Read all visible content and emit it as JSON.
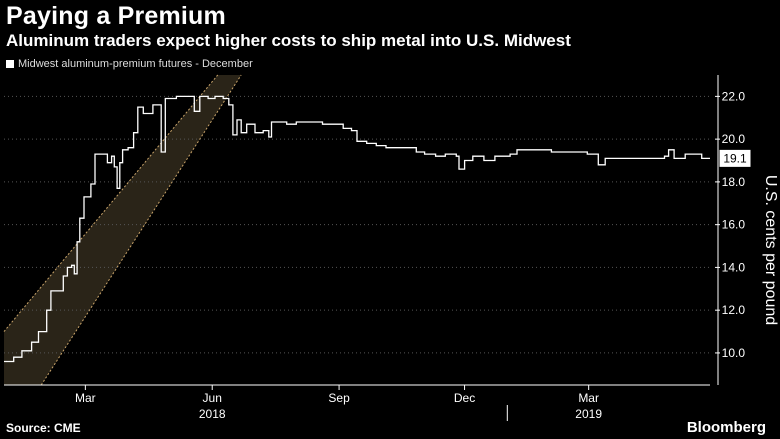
{
  "header": {
    "title": "Paying a Premium",
    "subtitle": "Aluminum traders expect higher costs to ship metal into U.S. Midwest"
  },
  "legend": {
    "label": "Midwest aluminum-premium futures - December"
  },
  "footer": {
    "source": "Source: CME",
    "brand": "Bloomberg"
  },
  "colors": {
    "background": "#000000",
    "line": "#ffffff",
    "band_fill": "#2a2418",
    "band_edge": "#c9a46a"
  },
  "chart_data": {
    "type": "line",
    "title": "Paying a Premium",
    "subtitle": "Aluminum traders expect higher costs to ship metal into U.S. Midwest",
    "ylabel": "U.S. cents per pound",
    "ylim": [
      8.5,
      23.0
    ],
    "yticks": [
      "10.0",
      "12.0",
      "14.0",
      "16.0",
      "18.0",
      "20.0",
      "22.0"
    ],
    "ytick_values": [
      10,
      12,
      14,
      16,
      18,
      20,
      22
    ],
    "xlim": [
      "2018-01-01",
      "2019-05-28"
    ],
    "xticks": [
      {
        "label": "Mar",
        "date": "2018-03-01"
      },
      {
        "label": "Jun",
        "date": "2018-06-01"
      },
      {
        "label": "Sep",
        "date": "2018-09-01"
      },
      {
        "label": "Dec",
        "date": "2018-12-01"
      },
      {
        "label": "Mar",
        "date": "2019-03-01"
      }
    ],
    "year_labels": [
      {
        "label": "2018",
        "date": "2018-06-01"
      },
      {
        "label": "2019",
        "date": "2019-03-01"
      }
    ],
    "last_value_label": "19.1",
    "annotation": "shaded band highlighting the rally",
    "series": [
      {
        "points": [
          [
            "2018-01-01",
            9.6
          ],
          [
            "2018-01-08",
            9.8
          ],
          [
            "2018-01-14",
            10.1
          ],
          [
            "2018-01-21",
            10.5
          ],
          [
            "2018-01-26",
            11.0
          ],
          [
            "2018-02-01",
            12.0
          ],
          [
            "2018-02-04",
            12.9
          ],
          [
            "2018-02-10",
            12.9
          ],
          [
            "2018-02-13",
            13.6
          ],
          [
            "2018-02-16",
            14.0
          ],
          [
            "2018-02-19",
            14.1
          ],
          [
            "2018-02-21",
            13.7
          ],
          [
            "2018-02-23",
            15.2
          ],
          [
            "2018-02-25",
            16.3
          ],
          [
            "2018-02-28",
            17.3
          ],
          [
            "2018-03-05",
            17.9
          ],
          [
            "2018-03-08",
            19.3
          ],
          [
            "2018-03-14",
            19.3
          ],
          [
            "2018-03-17",
            18.9
          ],
          [
            "2018-03-20",
            19.2
          ],
          [
            "2018-03-22",
            18.7
          ],
          [
            "2018-03-24",
            17.7
          ],
          [
            "2018-03-26",
            18.9
          ],
          [
            "2018-03-28",
            19.5
          ],
          [
            "2018-04-01",
            19.6
          ],
          [
            "2018-04-05",
            20.3
          ],
          [
            "2018-04-08",
            21.5
          ],
          [
            "2018-04-12",
            21.2
          ],
          [
            "2018-04-16",
            21.2
          ],
          [
            "2018-04-19",
            21.6
          ],
          [
            "2018-04-22",
            21.6
          ],
          [
            "2018-04-25",
            19.4
          ],
          [
            "2018-04-28",
            21.9
          ],
          [
            "2018-05-06",
            22.0
          ],
          [
            "2018-05-13",
            22.0
          ],
          [
            "2018-05-19",
            21.3
          ],
          [
            "2018-05-23",
            22.0
          ],
          [
            "2018-05-29",
            21.9
          ],
          [
            "2018-06-03",
            22.0
          ],
          [
            "2018-06-09",
            21.9
          ],
          [
            "2018-06-13",
            21.6
          ],
          [
            "2018-06-16",
            20.2
          ],
          [
            "2018-06-19",
            20.9
          ],
          [
            "2018-06-22",
            20.3
          ],
          [
            "2018-06-26",
            20.7
          ],
          [
            "2018-07-02",
            20.3
          ],
          [
            "2018-07-08",
            20.4
          ],
          [
            "2018-07-12",
            20.1
          ],
          [
            "2018-07-14",
            20.8
          ],
          [
            "2018-07-20",
            20.8
          ],
          [
            "2018-07-25",
            20.7
          ],
          [
            "2018-08-01",
            20.8
          ],
          [
            "2018-08-20",
            20.7
          ],
          [
            "2018-08-29",
            20.7
          ],
          [
            "2018-09-04",
            20.5
          ],
          [
            "2018-09-10",
            20.4
          ],
          [
            "2018-09-14",
            19.9
          ],
          [
            "2018-09-21",
            19.8
          ],
          [
            "2018-09-28",
            19.7
          ],
          [
            "2018-10-05",
            19.6
          ],
          [
            "2018-10-14",
            19.6
          ],
          [
            "2018-10-22",
            19.6
          ],
          [
            "2018-10-27",
            19.4
          ],
          [
            "2018-11-02",
            19.3
          ],
          [
            "2018-11-10",
            19.2
          ],
          [
            "2018-11-17",
            19.3
          ],
          [
            "2018-11-25",
            19.2
          ],
          [
            "2018-11-27",
            18.6
          ],
          [
            "2018-12-01",
            19.0
          ],
          [
            "2018-12-07",
            19.2
          ],
          [
            "2018-12-15",
            19.0
          ],
          [
            "2018-12-23",
            19.2
          ],
          [
            "2019-01-03",
            19.3
          ],
          [
            "2019-01-08",
            19.5
          ],
          [
            "2019-01-20",
            19.5
          ],
          [
            "2019-02-02",
            19.4
          ],
          [
            "2019-02-14",
            19.4
          ],
          [
            "2019-02-28",
            19.3
          ],
          [
            "2019-03-05",
            19.3
          ],
          [
            "2019-03-08",
            18.8
          ],
          [
            "2019-03-13",
            19.1
          ],
          [
            "2019-03-28",
            19.1
          ],
          [
            "2019-04-13",
            19.1
          ],
          [
            "2019-04-25",
            19.2
          ],
          [
            "2019-04-28",
            19.5
          ],
          [
            "2019-05-02",
            19.1
          ],
          [
            "2019-05-10",
            19.3
          ],
          [
            "2019-05-16",
            19.3
          ],
          [
            "2019-05-22",
            19.1
          ],
          [
            "2019-05-28",
            19.1
          ]
        ]
      }
    ]
  }
}
